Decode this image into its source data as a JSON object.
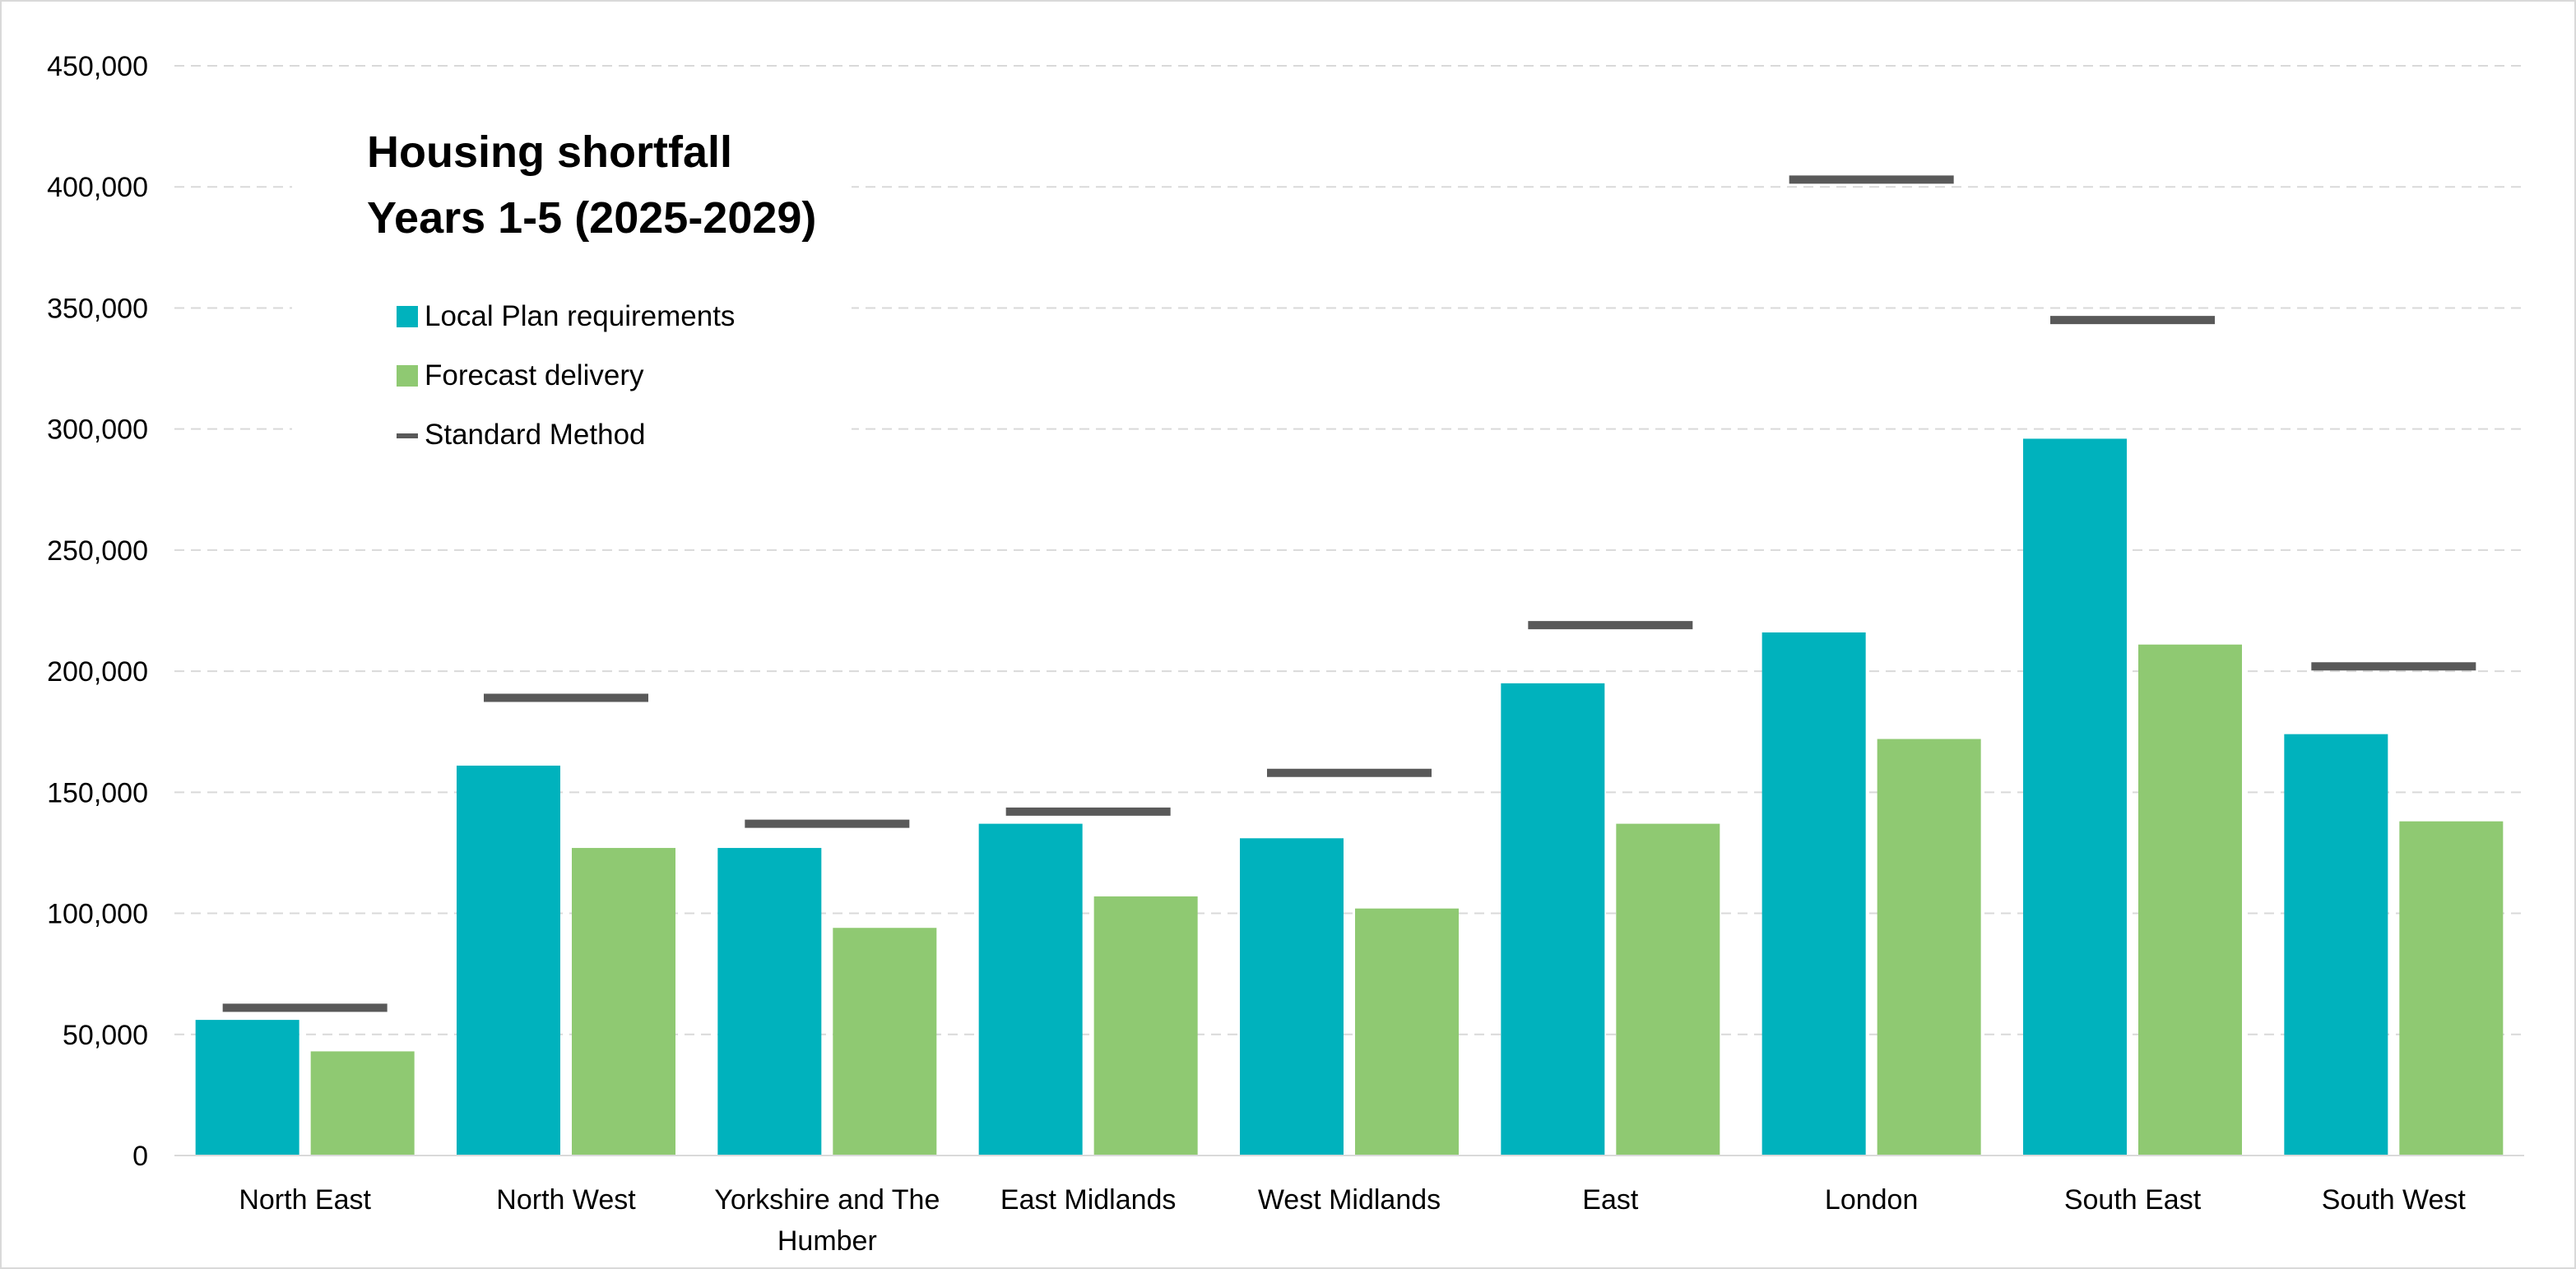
{
  "chart_data": {
    "type": "bar",
    "title_lines": [
      "Housing shortfall",
      "Years 1-5 (2025-2029)"
    ],
    "categories": [
      "North East",
      "North West",
      "Yorkshire and The Humber",
      "East Midlands",
      "West Midlands",
      "East",
      "London",
      "South East",
      "South West"
    ],
    "category_lines": [
      [
        "North East"
      ],
      [
        "North West"
      ],
      [
        "Yorkshire and The",
        "Humber"
      ],
      [
        "East Midlands"
      ],
      [
        "West Midlands"
      ],
      [
        "East"
      ],
      [
        "London"
      ],
      [
        "South East"
      ],
      [
        "South West"
      ]
    ],
    "series": [
      {
        "name": "Local Plan requirements",
        "type": "bar",
        "color": "#00b2bd",
        "values": [
          56000,
          161000,
          127000,
          137000,
          131000,
          195000,
          216000,
          296000,
          174000
        ]
      },
      {
        "name": "Forecast delivery",
        "type": "bar",
        "color": "#8fc972",
        "values": [
          43000,
          127000,
          94000,
          107000,
          102000,
          137000,
          172000,
          211000,
          138000
        ]
      },
      {
        "name": "Standard Method",
        "type": "marker-line",
        "color": "#595959",
        "values": [
          61000,
          189000,
          137000,
          142000,
          158000,
          219000,
          403000,
          345000,
          202000
        ]
      }
    ],
    "ylim": [
      0,
      450000
    ],
    "yticks": [
      0,
      50000,
      100000,
      150000,
      200000,
      250000,
      300000,
      350000,
      400000,
      450000
    ],
    "ytick_labels": [
      "0",
      "50,000",
      "100,000",
      "150,000",
      "200,000",
      "250,000",
      "300,000",
      "350,000",
      "400,000",
      "450,000"
    ],
    "xlabel": "",
    "ylabel": "",
    "grid": "horizontal dashed",
    "legend_position": "top-left"
  }
}
